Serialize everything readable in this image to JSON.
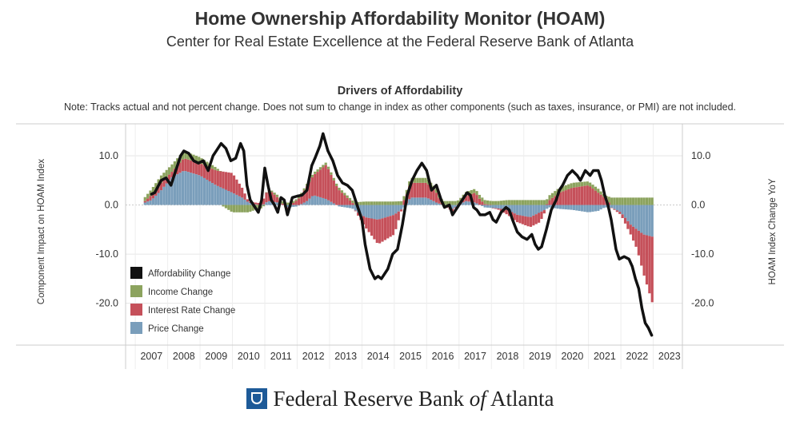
{
  "header": {
    "title": "Home Ownership Affordability Monitor (HOAM)",
    "subtitle": "Center for Real Estate Excellence at the Federal Reserve Bank of Atlanta"
  },
  "footer": {
    "org_before": "Federal Reserve Bank",
    "org_of": "of",
    "org_after": "Atlanta"
  },
  "chart_data": {
    "type": "bar",
    "title": "Drivers of Affordability",
    "note": "Note: Tracks actual and not percent change. Does not sum to change in index as other components (such as taxes, insurance, or PMI) are not included.",
    "ylabel_left": "Component Impact on HOAM Index",
    "ylabel_right": "HOAM Index Change YoY",
    "ylim": [
      -28.5,
      16.5
    ],
    "xlim": [
      2006.2,
      2023.4
    ],
    "yticks": [
      {
        "value": 10,
        "label": "10.0"
      },
      {
        "value": 0,
        "label": "0.0"
      },
      {
        "value": -10,
        "label": "-10.0"
      },
      {
        "value": -20,
        "label": "-20.0"
      }
    ],
    "xticks": [
      "2007",
      "2008",
      "2009",
      "2010",
      "2011",
      "2012",
      "2013",
      "2014",
      "2015",
      "2016",
      "2017",
      "2018",
      "2019",
      "2020",
      "2021",
      "2022",
      "2023"
    ],
    "grid": true,
    "legend_position": "bottom-left",
    "colors": {
      "Affordability Change": "#111111",
      "Income Change": "#8ca35e",
      "Interest Rate Change": "#c5505a",
      "Price Change": "#7a9ebb"
    },
    "stack_series": [
      {
        "name": "Price Change",
        "points": [
          [
            2006.8,
            0.5
          ],
          [
            2007.0,
            1
          ],
          [
            2007.3,
            3
          ],
          [
            2007.6,
            5.5
          ],
          [
            2008.0,
            7
          ],
          [
            2008.5,
            6
          ],
          [
            2009.0,
            4
          ],
          [
            2009.5,
            2.5
          ],
          [
            2009.8,
            1.5
          ],
          [
            2010.0,
            0.5
          ],
          [
            2010.4,
            -0.2
          ],
          [
            2010.6,
            0.8
          ],
          [
            2010.9,
            0.5
          ],
          [
            2011.2,
            -0.5
          ],
          [
            2011.5,
            -0.3
          ],
          [
            2011.8,
            0.8
          ],
          [
            2012.0,
            2
          ],
          [
            2012.4,
            1.2
          ],
          [
            2012.8,
            -0.3
          ],
          [
            2013.2,
            -0.7
          ],
          [
            2013.6,
            -2.5
          ],
          [
            2014.0,
            -3
          ],
          [
            2014.5,
            -2
          ],
          [
            2014.8,
            -0.5
          ],
          [
            2015.0,
            1.5
          ],
          [
            2015.5,
            1.5
          ],
          [
            2015.8,
            0.5
          ],
          [
            2016.0,
            0
          ],
          [
            2016.3,
            -0.8
          ],
          [
            2016.7,
            0.8
          ],
          [
            2017.0,
            0.5
          ],
          [
            2017.3,
            -0.5
          ],
          [
            2017.7,
            -0.7
          ],
          [
            2018.0,
            -1
          ],
          [
            2018.3,
            -2
          ],
          [
            2018.7,
            -2.5
          ],
          [
            2019.0,
            -1.5
          ],
          [
            2019.3,
            -0.5
          ],
          [
            2019.6,
            -0.8
          ],
          [
            2020.0,
            -1
          ],
          [
            2020.5,
            -1.5
          ],
          [
            2020.8,
            -1.2
          ],
          [
            2021.0,
            -0.5
          ],
          [
            2021.2,
            -0.5
          ],
          [
            2021.5,
            -1.5
          ],
          [
            2021.8,
            -4
          ],
          [
            2022.0,
            -5
          ],
          [
            2022.2,
            -6
          ],
          [
            2022.5,
            -6.5
          ]
        ]
      },
      {
        "name": "Interest Rate Change",
        "points": [
          [
            2006.8,
            0.3
          ],
          [
            2007.0,
            1
          ],
          [
            2007.3,
            1.5
          ],
          [
            2007.6,
            1
          ],
          [
            2008.0,
            2.5
          ],
          [
            2008.5,
            2.5
          ],
          [
            2009.0,
            3
          ],
          [
            2009.5,
            4
          ],
          [
            2009.8,
            2
          ],
          [
            2010.0,
            0.2
          ],
          [
            2010.4,
            0.5
          ],
          [
            2010.6,
            2.5
          ],
          [
            2010.9,
            1
          ],
          [
            2011.2,
            -0.5
          ],
          [
            2011.5,
            1
          ],
          [
            2011.8,
            3
          ],
          [
            2012.0,
            4
          ],
          [
            2012.4,
            7
          ],
          [
            2012.8,
            3
          ],
          [
            2013.2,
            0.5
          ],
          [
            2013.6,
            -2
          ],
          [
            2014.0,
            -5
          ],
          [
            2014.5,
            -4
          ],
          [
            2014.8,
            1
          ],
          [
            2015.0,
            3
          ],
          [
            2015.5,
            3
          ],
          [
            2015.8,
            2
          ],
          [
            2016.0,
            0
          ],
          [
            2016.3,
            -0.5
          ],
          [
            2016.7,
            1
          ],
          [
            2017.0,
            2
          ],
          [
            2017.3,
            0.2
          ],
          [
            2017.7,
            -0.2
          ],
          [
            2018.0,
            -1
          ],
          [
            2018.3,
            -1.5
          ],
          [
            2018.7,
            -2
          ],
          [
            2019.0,
            -2
          ],
          [
            2019.3,
            1
          ],
          [
            2019.6,
            2.5
          ],
          [
            2020.0,
            3.5
          ],
          [
            2020.5,
            4
          ],
          [
            2020.8,
            2.5
          ],
          [
            2021.0,
            1.5
          ],
          [
            2021.2,
            0
          ],
          [
            2021.5,
            -0.5
          ],
          [
            2021.8,
            -2
          ],
          [
            2022.0,
            -4
          ],
          [
            2022.2,
            -8
          ],
          [
            2022.5,
            -14
          ]
        ]
      },
      {
        "name": "Income Change",
        "points": [
          [
            2006.8,
            0.8
          ],
          [
            2007.0,
            1.2
          ],
          [
            2007.3,
            1.5
          ],
          [
            2007.6,
            1.5
          ],
          [
            2008.0,
            1.5
          ],
          [
            2008.5,
            1.2
          ],
          [
            2009.0,
            0.6
          ],
          [
            2009.5,
            -1.5
          ],
          [
            2009.8,
            -1.5
          ],
          [
            2010.0,
            -1.5
          ],
          [
            2010.4,
            -0.5
          ],
          [
            2010.6,
            0.2
          ],
          [
            2010.9,
            0.5
          ],
          [
            2011.2,
            0.5
          ],
          [
            2011.5,
            0.3
          ],
          [
            2011.8,
            0.5
          ],
          [
            2012.0,
            0.5
          ],
          [
            2012.4,
            0.5
          ],
          [
            2012.8,
            0.5
          ],
          [
            2013.2,
            0.5
          ],
          [
            2013.6,
            0.7
          ],
          [
            2014.0,
            0.7
          ],
          [
            2014.5,
            0.7
          ],
          [
            2014.8,
            0.8
          ],
          [
            2015.0,
            1
          ],
          [
            2015.5,
            1
          ],
          [
            2015.8,
            0.8
          ],
          [
            2016.0,
            0.8
          ],
          [
            2016.3,
            0.8
          ],
          [
            2016.7,
            0.8
          ],
          [
            2017.0,
            0.8
          ],
          [
            2017.3,
            0.8
          ],
          [
            2017.7,
            0.8
          ],
          [
            2018.0,
            1
          ],
          [
            2018.3,
            1
          ],
          [
            2018.7,
            1
          ],
          [
            2019.0,
            1
          ],
          [
            2019.3,
            1
          ],
          [
            2019.6,
            1
          ],
          [
            2020.0,
            1
          ],
          [
            2020.5,
            0.8
          ],
          [
            2020.8,
            0.8
          ],
          [
            2021.0,
            0.5
          ],
          [
            2021.2,
            1.5
          ],
          [
            2021.5,
            1.5
          ],
          [
            2021.8,
            1.5
          ],
          [
            2022.0,
            1.5
          ],
          [
            2022.2,
            1.5
          ],
          [
            2022.5,
            1.5
          ]
        ]
      }
    ],
    "line_series": {
      "name": "Affordability Change",
      "points": [
        [
          2007.0,
          2.2
        ],
        [
          2007.1,
          2.5
        ],
        [
          2007.3,
          5
        ],
        [
          2007.45,
          5.5
        ],
        [
          2007.6,
          4
        ],
        [
          2007.75,
          7
        ],
        [
          2007.9,
          10
        ],
        [
          2008.0,
          11
        ],
        [
          2008.15,
          10.5
        ],
        [
          2008.3,
          9
        ],
        [
          2008.45,
          8.5
        ],
        [
          2008.6,
          9
        ],
        [
          2008.75,
          7
        ],
        [
          2008.9,
          10
        ],
        [
          2009.0,
          11
        ],
        [
          2009.15,
          12.5
        ],
        [
          2009.3,
          11.5
        ],
        [
          2009.45,
          9
        ],
        [
          2009.6,
          9.5
        ],
        [
          2009.75,
          12.5
        ],
        [
          2009.85,
          11
        ],
        [
          2009.95,
          4
        ],
        [
          2010.05,
          1
        ],
        [
          2010.2,
          -0.5
        ],
        [
          2010.3,
          -1.5
        ],
        [
          2010.4,
          1
        ],
        [
          2010.5,
          7.5
        ],
        [
          2010.6,
          4
        ],
        [
          2010.7,
          1
        ],
        [
          2010.8,
          0
        ],
        [
          2010.9,
          -1.5
        ],
        [
          2011.0,
          1.5
        ],
        [
          2011.1,
          1
        ],
        [
          2011.2,
          -2
        ],
        [
          2011.35,
          1.5
        ],
        [
          2011.5,
          1.8
        ],
        [
          2011.65,
          2
        ],
        [
          2011.8,
          3
        ],
        [
          2011.95,
          8
        ],
        [
          2012.05,
          9.5
        ],
        [
          2012.2,
          12
        ],
        [
          2012.3,
          14.5
        ],
        [
          2012.45,
          11
        ],
        [
          2012.6,
          9
        ],
        [
          2012.75,
          6
        ],
        [
          2012.9,
          4.5
        ],
        [
          2013.05,
          4
        ],
        [
          2013.2,
          3
        ],
        [
          2013.35,
          0
        ],
        [
          2013.5,
          -3
        ],
        [
          2013.6,
          -8
        ],
        [
          2013.75,
          -13
        ],
        [
          2013.9,
          -15
        ],
        [
          2014.0,
          -14.5
        ],
        [
          2014.1,
          -15
        ],
        [
          2014.3,
          -13
        ],
        [
          2014.45,
          -10
        ],
        [
          2014.6,
          -9
        ],
        [
          2014.75,
          -4
        ],
        [
          2014.9,
          2
        ],
        [
          2015.05,
          5
        ],
        [
          2015.2,
          7
        ],
        [
          2015.35,
          8.5
        ],
        [
          2015.5,
          7
        ],
        [
          2015.65,
          3
        ],
        [
          2015.8,
          4
        ],
        [
          2015.95,
          1
        ],
        [
          2016.05,
          -0.5
        ],
        [
          2016.2,
          0
        ],
        [
          2016.3,
          -2
        ],
        [
          2016.45,
          -0.5
        ],
        [
          2016.6,
          1
        ],
        [
          2016.75,
          2.5
        ],
        [
          2016.85,
          2
        ],
        [
          2016.95,
          -0.5
        ],
        [
          2017.05,
          -1
        ],
        [
          2017.15,
          -2
        ],
        [
          2017.3,
          -2
        ],
        [
          2017.45,
          -1.5
        ],
        [
          2017.55,
          -3
        ],
        [
          2017.65,
          -3.5
        ],
        [
          2017.8,
          -1.5
        ],
        [
          2017.95,
          -0.5
        ],
        [
          2018.05,
          -1
        ],
        [
          2018.15,
          -3
        ],
        [
          2018.3,
          -5.5
        ],
        [
          2018.45,
          -6.5
        ],
        [
          2018.6,
          -7
        ],
        [
          2018.75,
          -6
        ],
        [
          2018.85,
          -8
        ],
        [
          2018.95,
          -9
        ],
        [
          2019.05,
          -8.5
        ],
        [
          2019.2,
          -5
        ],
        [
          2019.35,
          -1
        ],
        [
          2019.5,
          1
        ],
        [
          2019.6,
          3
        ],
        [
          2019.7,
          4
        ],
        [
          2019.85,
          6
        ],
        [
          2020.0,
          7
        ],
        [
          2020.15,
          6
        ],
        [
          2020.25,
          5
        ],
        [
          2020.4,
          7
        ],
        [
          2020.55,
          6
        ],
        [
          2020.65,
          7
        ],
        [
          2020.8,
          7
        ],
        [
          2020.9,
          5
        ],
        [
          2021.0,
          2
        ],
        [
          2021.1,
          0
        ],
        [
          2021.2,
          -3
        ],
        [
          2021.35,
          -9
        ],
        [
          2021.45,
          -11
        ],
        [
          2021.6,
          -10.5
        ],
        [
          2021.75,
          -11
        ],
        [
          2021.85,
          -12.5
        ],
        [
          2021.95,
          -15
        ],
        [
          2022.05,
          -17
        ],
        [
          2022.15,
          -21
        ],
        [
          2022.25,
          -24
        ],
        [
          2022.35,
          -25
        ],
        [
          2022.45,
          -26.5
        ]
      ]
    },
    "legend": [
      {
        "name": "Affordability Change"
      },
      {
        "name": "Income Change"
      },
      {
        "name": "Interest Rate Change"
      },
      {
        "name": "Price Change"
      }
    ]
  }
}
